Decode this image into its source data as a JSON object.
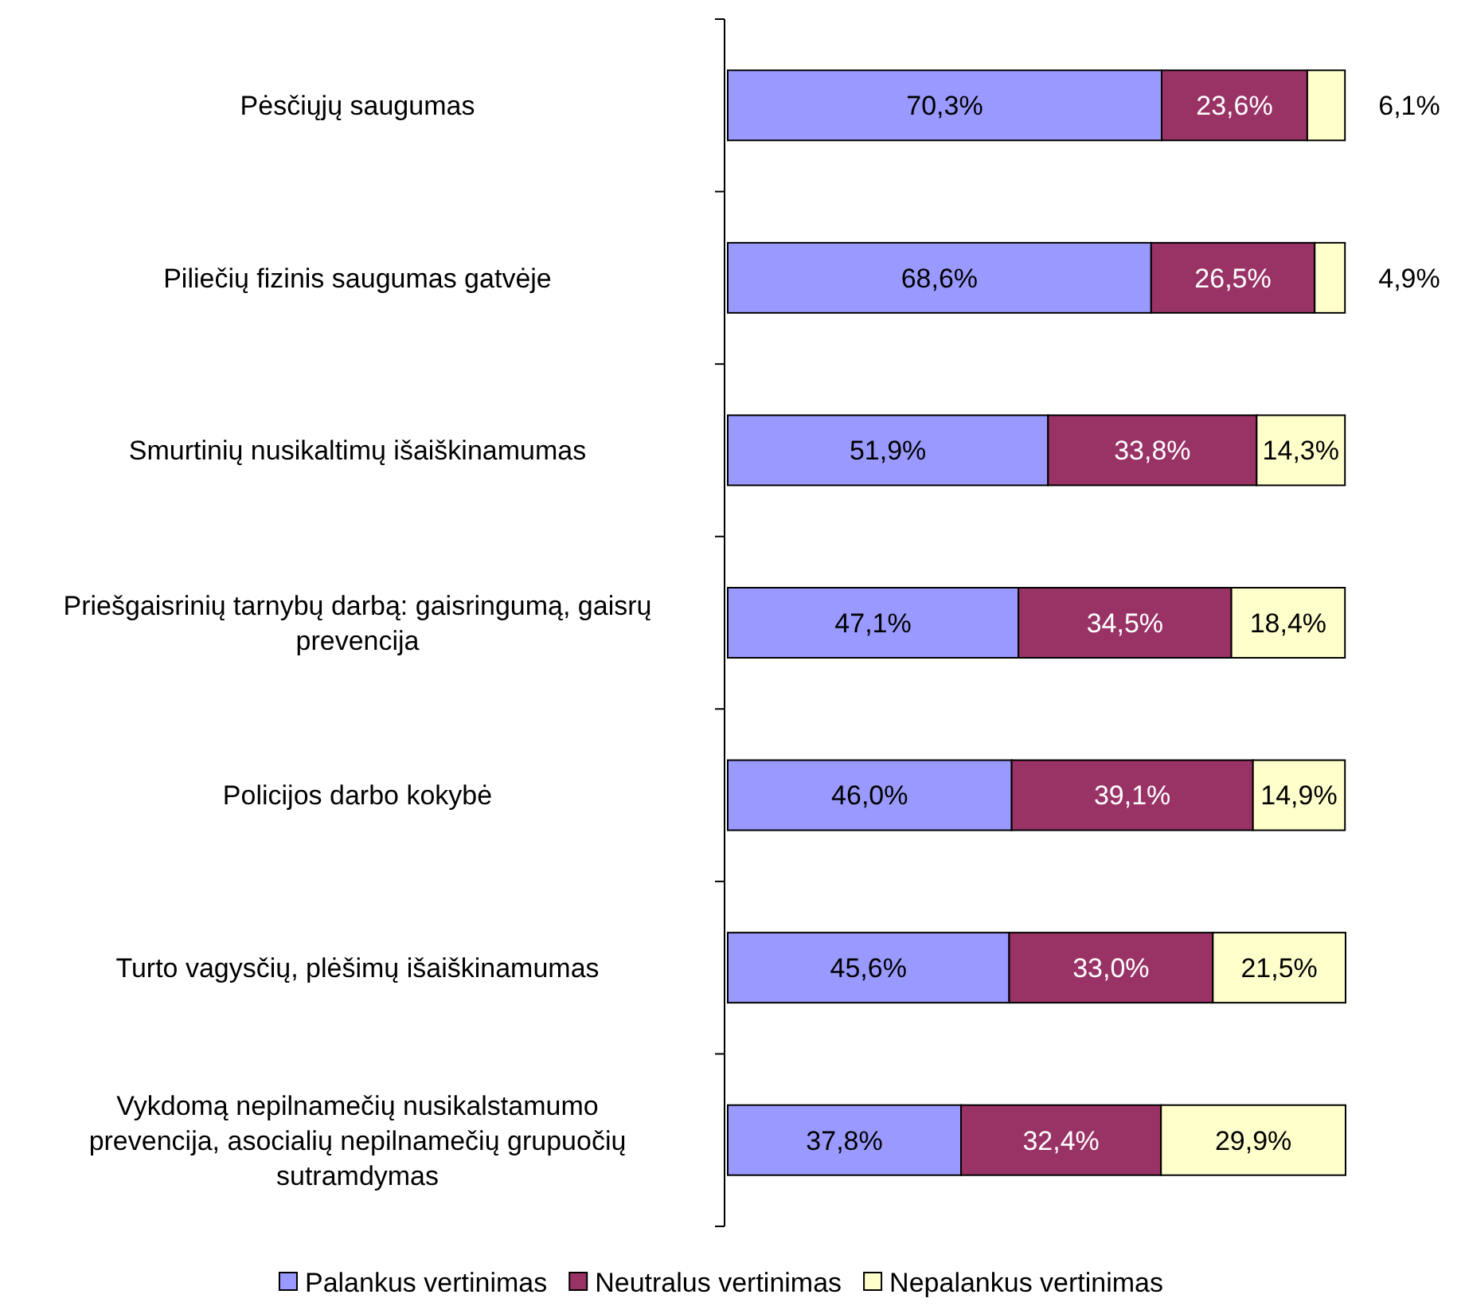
{
  "chart_data": {
    "type": "bar",
    "orientation": "horizontal",
    "stacked": true,
    "legend": "bottom",
    "categories": [
      "Pėsčiųjų saugumas",
      "Piliečių fizinis saugumas gatvėje",
      "Smurtinių nusikaltimų išaiškinamumas",
      "Priešgaisrinių tarnybų darbą: gaisringumą, gaisrų prevencija",
      "Policijos darbo kokybė",
      "Turto vagysčių, plėšimų išaiškinamumas",
      "Vykdomą nepilnamečių nusikalstamumo prevencija, asocialių nepilnamečių grupuočių sutramdymas"
    ],
    "series": [
      {
        "name": "Palankus vertinimas",
        "color": "#9999ff",
        "values": [
          70.3,
          68.6,
          51.9,
          47.1,
          46.0,
          45.6,
          37.8
        ],
        "value_labels": [
          "70,3%",
          "68,6%",
          "51,9%",
          "47,1%",
          "46,0%",
          "45,6%",
          "37,8%"
        ]
      },
      {
        "name": "Neutralus vertinimas",
        "color": "#993366",
        "values": [
          23.6,
          26.5,
          33.8,
          34.5,
          39.1,
          33.0,
          32.4
        ],
        "value_labels": [
          "23,6%",
          "26,5%",
          "33,8%",
          "34,5%",
          "39,1%",
          "33,0%",
          "32,4%"
        ]
      },
      {
        "name": "Nepalankus vertinimas",
        "color": "#ffffcc",
        "values": [
          6.1,
          4.9,
          14.3,
          18.4,
          14.9,
          21.5,
          29.9
        ],
        "value_labels": [
          "6,1%",
          "4,9%",
          "14,3%",
          "18,4%",
          "14,9%",
          "21,5%",
          "29,9%"
        ]
      }
    ]
  }
}
